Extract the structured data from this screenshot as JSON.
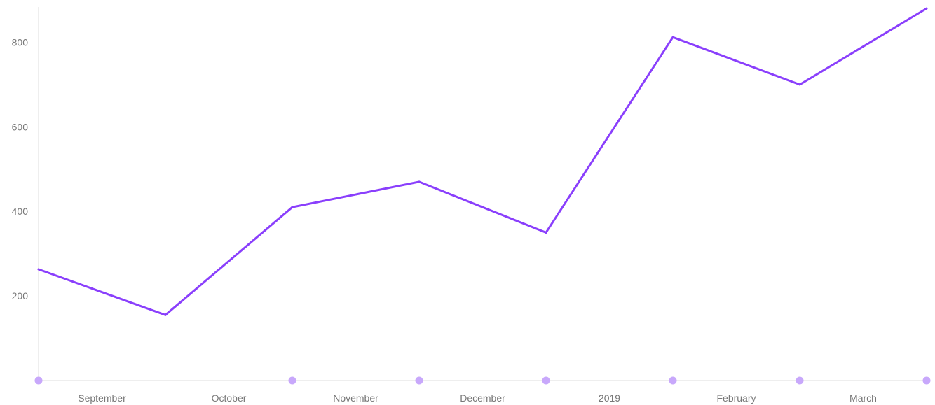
{
  "chart_data": {
    "type": "line",
    "title": "",
    "xlabel": "",
    "ylabel": "",
    "x": [
      0,
      1,
      2,
      3,
      4,
      5,
      6,
      7
    ],
    "x_tick_labels": [
      "September",
      "October",
      "November",
      "December",
      "2019",
      "February",
      "March"
    ],
    "y_ticks": [
      200,
      400,
      600,
      800
    ],
    "y_tick_labels": [
      "200",
      "400",
      "600",
      "800"
    ],
    "ylim": [
      0,
      900
    ],
    "grid": false,
    "legend": "none",
    "series": [
      {
        "values": [
          263,
          155,
          410,
          470,
          350,
          812,
          700,
          880
        ]
      }
    ],
    "colors": {
      "line": "#8a3ffc",
      "marker": "#c8a8fb",
      "axis": "#dddddd",
      "tick_text": "#777777"
    }
  }
}
